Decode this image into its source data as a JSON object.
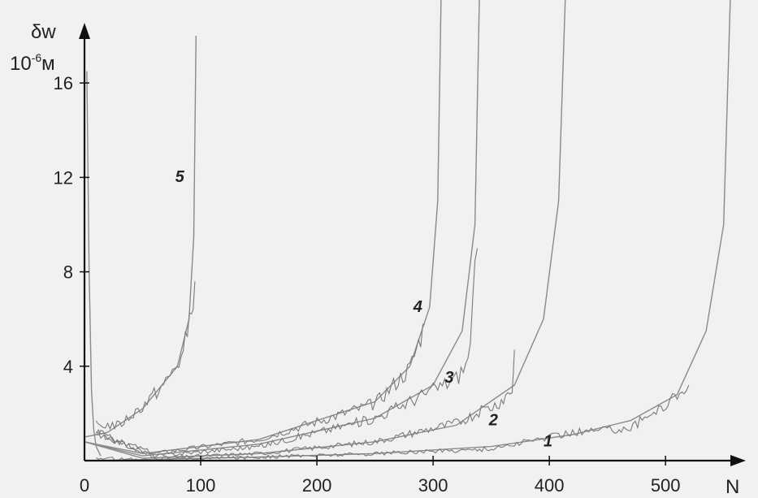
{
  "chart_data": {
    "type": "line",
    "title": "",
    "xlabel": "N",
    "ylabel": "δw",
    "ylabel_unit": "10^-6 м",
    "ylabel_unit_base": "10",
    "ylabel_unit_exp": "-6",
    "ylabel_unit_suffix": "м",
    "xlim": [
      0,
      560
    ],
    "ylim": [
      0,
      19
    ],
    "x_ticks": [
      "0",
      "100",
      "200",
      "300",
      "400",
      "500"
    ],
    "y_ticks": [
      "4",
      "8",
      "12",
      "16"
    ],
    "grid": false,
    "series": [
      {
        "name": "1",
        "model_x": [
          0,
          60,
          150,
          250,
          350,
          420,
          470,
          510,
          535,
          550,
          556
        ],
        "model_y": [
          0.0,
          0.05,
          0.15,
          0.3,
          0.6,
          1.1,
          1.7,
          2.8,
          5.5,
          10.0,
          20.0
        ],
        "exp_x": [
          10,
          60,
          150,
          250,
          350,
          420,
          470,
          500,
          520
        ],
        "exp_y": [
          0.1,
          0.05,
          0.15,
          0.3,
          0.5,
          1.2,
          1.4,
          2.4,
          3.2
        ]
      },
      {
        "name": "2",
        "model_x": [
          0,
          50,
          150,
          250,
          320,
          370,
          395,
          408,
          414
        ],
        "model_y": [
          0.8,
          0.1,
          0.3,
          0.8,
          1.5,
          3.2,
          6.0,
          11.0,
          20.0
        ],
        "exp_x": [
          10,
          60,
          150,
          250,
          320,
          355,
          368,
          370
        ],
        "exp_y": [
          1.2,
          0.1,
          0.3,
          0.8,
          1.6,
          2.4,
          3.0,
          4.7
        ]
      },
      {
        "name": "3",
        "model_x": [
          0,
          50,
          150,
          250,
          300,
          325,
          336,
          340
        ],
        "model_y": [
          0.8,
          0.2,
          0.7,
          1.8,
          3.2,
          5.5,
          10.0,
          20.0
        ],
        "exp_x": [
          10,
          60,
          150,
          250,
          300,
          320,
          330,
          338
        ],
        "exp_y": [
          1.2,
          0.2,
          0.6,
          1.8,
          3.0,
          3.5,
          4.2,
          9.0
        ]
      },
      {
        "name": "4",
        "model_x": [
          0,
          50,
          150,
          250,
          280,
          297,
          304,
          307
        ],
        "model_y": [
          0.8,
          0.3,
          0.9,
          2.5,
          4.0,
          6.5,
          11.0,
          20.0
        ],
        "exp_x": [
          10,
          60,
          150,
          250,
          280,
          293
        ],
        "exp_y": [
          1.2,
          0.3,
          0.9,
          2.4,
          3.9,
          5.8
        ]
      },
      {
        "name": "5",
        "model_x": [
          0,
          20,
          50,
          80,
          90,
          94,
          96
        ],
        "model_y": [
          1.0,
          1.2,
          2.2,
          4.0,
          6.0,
          9.5,
          18.0
        ],
        "exp_x": [
          10,
          30,
          50,
          70,
          85,
          92,
          95
        ],
        "exp_y": [
          1.5,
          1.5,
          2.3,
          3.3,
          4.5,
          6.5,
          7.6
        ]
      }
    ],
    "initial_spike": {
      "x": [
        2,
        4,
        6,
        8,
        10,
        14
      ],
      "y": [
        16.5,
        8.0,
        3.0,
        1.3,
        0.6,
        0.2
      ]
    },
    "label_positions": [
      {
        "name": "1",
        "x": 395,
        "y": 0.6
      },
      {
        "name": "2",
        "x": 348,
        "y": 1.5
      },
      {
        "name": "3",
        "x": 310,
        "y": 3.3
      },
      {
        "name": "4",
        "x": 283,
        "y": 6.3
      },
      {
        "name": "5",
        "x": 78,
        "y": 11.8
      }
    ],
    "colors": {
      "background": "#f1f1f1",
      "curves": "#8a8a8a",
      "axes": "#111111"
    }
  }
}
